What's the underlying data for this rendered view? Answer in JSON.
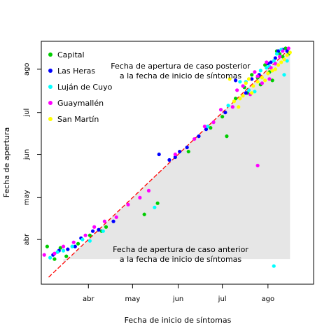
{
  "chart_data": {
    "type": "scatter",
    "title": "",
    "xlabel": "Fecha de inicio de síntomas",
    "ylabel": "Fecha de apertura",
    "x_ticks": [
      {
        "value": 35,
        "label": "abr"
      },
      {
        "value": 65,
        "label": "may"
      },
      {
        "value": 96,
        "label": "jun"
      },
      {
        "value": 126,
        "label": "jul"
      },
      {
        "value": 157,
        "label": "ago"
      }
    ],
    "y_ticks": [
      {
        "value": 35,
        "label": "abr"
      },
      {
        "value": 65,
        "label": "may"
      },
      {
        "value": 96,
        "label": "jun"
      },
      {
        "value": 126,
        "label": "jul"
      },
      {
        "value": 157,
        "label": "ago"
      }
    ],
    "xlim": [
      3,
      188
    ],
    "ylim": [
      3,
      177
    ],
    "grid": false,
    "legend_position": "top-left",
    "reference_line": {
      "type": "identity",
      "color": "#ff0000",
      "style": "dashed"
    },
    "shaded_region": {
      "x_start": 18,
      "x_end": 172,
      "y_floor": 21,
      "color": "#e6e6e6"
    },
    "annotations": {
      "upper_line1": "Fecha de apertura de caso posterior",
      "upper_line2": "a la fecha de inicio de síntomas",
      "lower_line1": "Fecha de apertura de caso anterior",
      "lower_line2": "a la fecha de inicio de síntomas"
    },
    "series": [
      {
        "name": "Capital",
        "color": "#00cd00",
        "points": [
          [
            7,
            30
          ],
          [
            12,
            21
          ],
          [
            16,
            29
          ],
          [
            20,
            23
          ],
          [
            28,
            32
          ],
          [
            36,
            38
          ],
          [
            44,
            41
          ],
          [
            47,
            44
          ],
          [
            73,
            53
          ],
          [
            82,
            61
          ],
          [
            103,
            98
          ],
          [
            118,
            115
          ],
          [
            126,
            123
          ],
          [
            129,
            109
          ],
          [
            135,
            136
          ],
          [
            141,
            144
          ],
          [
            143,
            140
          ],
          [
            146,
            153
          ],
          [
            150,
            151
          ],
          [
            152,
            146
          ],
          [
            155,
            160
          ],
          [
            158,
            155
          ],
          [
            160,
            149
          ],
          [
            163,
            170
          ],
          [
            165,
            168
          ],
          [
            167,
            166
          ],
          [
            169,
            172
          ],
          [
            171,
            168
          ]
        ]
      },
      {
        "name": "Las Heras",
        "color": "#0000ff",
        "points": [
          [
            11,
            24
          ],
          [
            15,
            27
          ],
          [
            21,
            28
          ],
          [
            26,
            30
          ],
          [
            30,
            36
          ],
          [
            38,
            41
          ],
          [
            42,
            42
          ],
          [
            52,
            48
          ],
          [
            83,
            96
          ],
          [
            90,
            92
          ],
          [
            94,
            94
          ],
          [
            97,
            98
          ],
          [
            102,
            101
          ],
          [
            110,
            109
          ],
          [
            115,
            114
          ],
          [
            128,
            126
          ],
          [
            135,
            149
          ],
          [
            142,
            140
          ],
          [
            146,
            150
          ],
          [
            151,
            153
          ],
          [
            157,
            161
          ],
          [
            159,
            162
          ],
          [
            162,
            165
          ],
          [
            164,
            170
          ],
          [
            167,
            171
          ],
          [
            170,
            170
          ]
        ]
      },
      {
        "name": "Luján de Cuyo",
        "color": "#00ffff",
        "points": [
          [
            9,
            22
          ],
          [
            14,
            26
          ],
          [
            18,
            27
          ],
          [
            24,
            30
          ],
          [
            31,
            35
          ],
          [
            36,
            34
          ],
          [
            45,
            41
          ],
          [
            80,
            58
          ],
          [
            116,
            116
          ],
          [
            130,
            131
          ],
          [
            138,
            148
          ],
          [
            142,
            148
          ],
          [
            144,
            142
          ],
          [
            148,
            141
          ],
          [
            152,
            156
          ],
          [
            156,
            158
          ],
          [
            158,
            159
          ],
          [
            161,
            163
          ],
          [
            163,
            168
          ],
          [
            166,
            171
          ],
          [
            168,
            153
          ],
          [
            170,
            163
          ],
          [
            161,
            16
          ]
        ]
      },
      {
        "name": "Guaymallén",
        "color": "#ff00ff",
        "points": [
          [
            5,
            24
          ],
          [
            12,
            25
          ],
          [
            18,
            30
          ],
          [
            25,
            33
          ],
          [
            33,
            38
          ],
          [
            39,
            44
          ],
          [
            46,
            48
          ],
          [
            54,
            51
          ],
          [
            62,
            60
          ],
          [
            70,
            65
          ],
          [
            76,
            70
          ],
          [
            94,
            96
          ],
          [
            107,
            107
          ],
          [
            114,
            116
          ],
          [
            120,
            119
          ],
          [
            125,
            128
          ],
          [
            133,
            130
          ],
          [
            140,
            145
          ],
          [
            145,
            139
          ],
          [
            148,
            155
          ],
          [
            150,
            152
          ],
          [
            153,
            147
          ],
          [
            156,
            162
          ],
          [
            159,
            158
          ],
          [
            162,
            161
          ],
          [
            165,
            166
          ],
          [
            167,
            170
          ],
          [
            171,
            172
          ],
          [
            150,
            88
          ],
          [
            158,
            150
          ],
          [
            136,
            142
          ]
        ]
      },
      {
        "name": "San Martín",
        "color": "#ffff00",
        "points": [
          [
            134,
            134
          ],
          [
            137,
            130
          ],
          [
            140,
            138
          ],
          [
            144,
            150
          ],
          [
            147,
            145
          ],
          [
            150,
            148
          ],
          [
            153,
            151
          ],
          [
            155,
            149
          ],
          [
            157,
            154
          ],
          [
            160,
            156
          ],
          [
            162,
            157
          ],
          [
            164,
            160
          ],
          [
            166,
            162
          ],
          [
            168,
            164
          ],
          [
            170,
            167
          ],
          [
            172,
            169
          ],
          [
            146,
            140
          ],
          [
            138,
            136
          ],
          [
            131,
            150
          ],
          [
            142,
            147
          ]
        ]
      }
    ]
  }
}
